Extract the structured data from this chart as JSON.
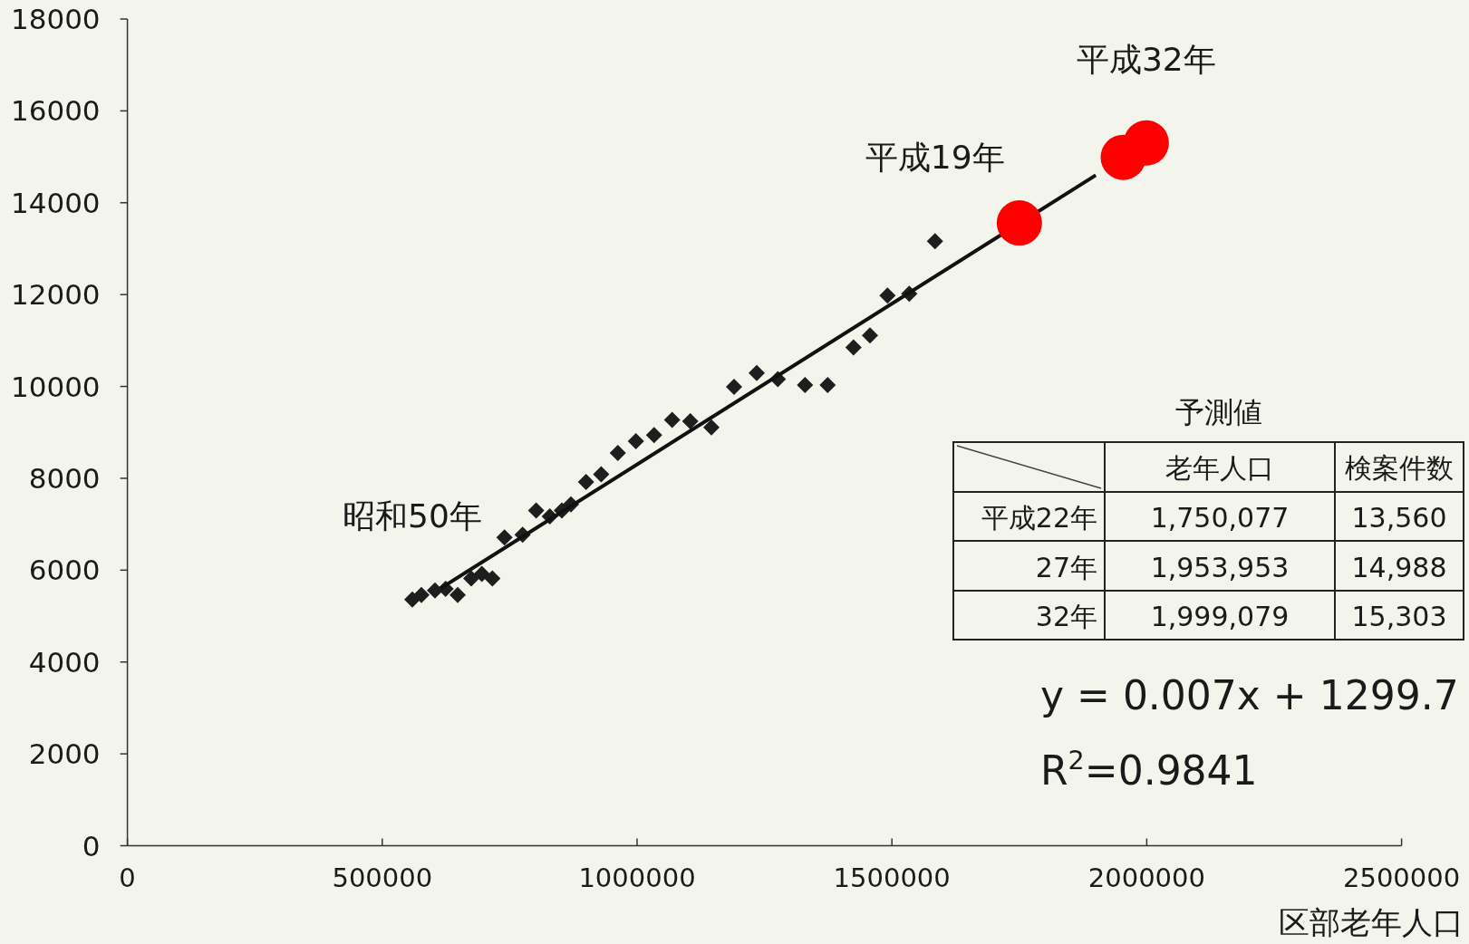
{
  "chart_data": {
    "type": "scatter",
    "xlabel": "区部老年人口",
    "xlim": [
      0,
      2500000
    ],
    "xticks": [
      0,
      500000,
      1000000,
      1500000,
      2000000,
      2500000
    ],
    "ylim": [
      0,
      18000
    ],
    "yticks": [
      0,
      2000,
      4000,
      6000,
      8000,
      10000,
      12000,
      14000,
      16000,
      18000
    ],
    "series": [
      {
        "marker": "diamond",
        "color": "#1e1e1e",
        "x": [
          559000,
          576800,
          603500,
          624300,
          648000,
          674600,
          695400,
          716100,
          739800,
          775400,
          802000,
          828700,
          852400,
          870200,
          899900,
          929600,
          962200,
          997700,
          1033300,
          1068800,
          1104400,
          1145800,
          1190300,
          1234700,
          1276200,
          1329500,
          1373900,
          1424600,
          1457000,
          1491300,
          1534000,
          1584500
        ],
        "values": [
          5360,
          5460,
          5560,
          5590,
          5460,
          5820,
          5920,
          5820,
          6710,
          6770,
          7300,
          7170,
          7300,
          7430,
          7920,
          8090,
          8550,
          8810,
          8940,
          9270,
          9240,
          9110,
          9990,
          10290,
          10160,
          10030,
          10030,
          10850,
          11110,
          11980,
          12020,
          13160
        ]
      },
      {
        "type": "line",
        "marker": "none",
        "line_style": "solid",
        "color": "#111111",
        "x": [
          614000,
          1900000
        ],
        "values": [
          5600,
          14600
        ]
      },
      {
        "marker": "circle",
        "color": "#ff0000",
        "x": [
          1750077,
          1953953,
          1999079
        ],
        "values": [
          13560,
          14988,
          15303
        ]
      }
    ],
    "annotations": [
      {
        "text": "平成32年",
        "x": 1999079,
        "y": 15303
      },
      {
        "text": "平成19年",
        "x": 1584500,
        "y": 13160
      },
      {
        "text": "昭和50年",
        "x": 559000,
        "y": 5360
      },
      "予測値",
      "老年人口",
      "検案件数",
      "平成22年",
      "1,750,077",
      "13,560",
      "27年",
      "1,953,953",
      "14,988",
      "32年",
      "1,999,079",
      "15,303",
      "y = 0.007x + 1299.7",
      "R$^{2}$=0.9841"
    ]
  }
}
